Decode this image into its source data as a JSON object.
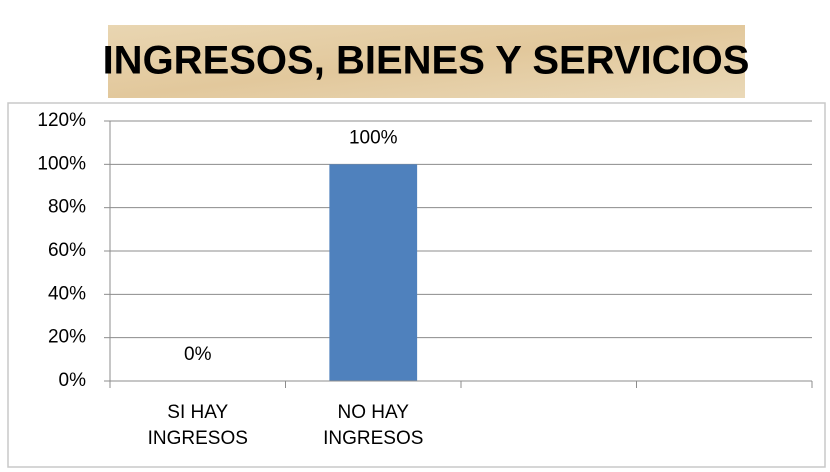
{
  "chart_data": {
    "type": "bar",
    "title": "INGRESOS, BIENES Y SERVICIOS",
    "categories": [
      "SI HAY INGRESOS",
      "NO HAY INGRESOS",
      null,
      null
    ],
    "values": [
      0,
      100,
      null,
      null
    ],
    "value_labels": [
      "0%",
      "100%",
      null,
      null
    ],
    "color": "#4f81bd",
    "ylim": [
      0,
      120
    ],
    "yticks": [
      {
        "value": 0,
        "label": "0%"
      },
      {
        "value": 20,
        "label": "20%"
      },
      {
        "value": 40,
        "label": "40%"
      },
      {
        "value": 60,
        "label": "60%"
      },
      {
        "value": 80,
        "label": "80%"
      },
      {
        "value": 100,
        "label": "100%"
      },
      {
        "value": 120,
        "label": "120%"
      }
    ],
    "grid": true
  }
}
